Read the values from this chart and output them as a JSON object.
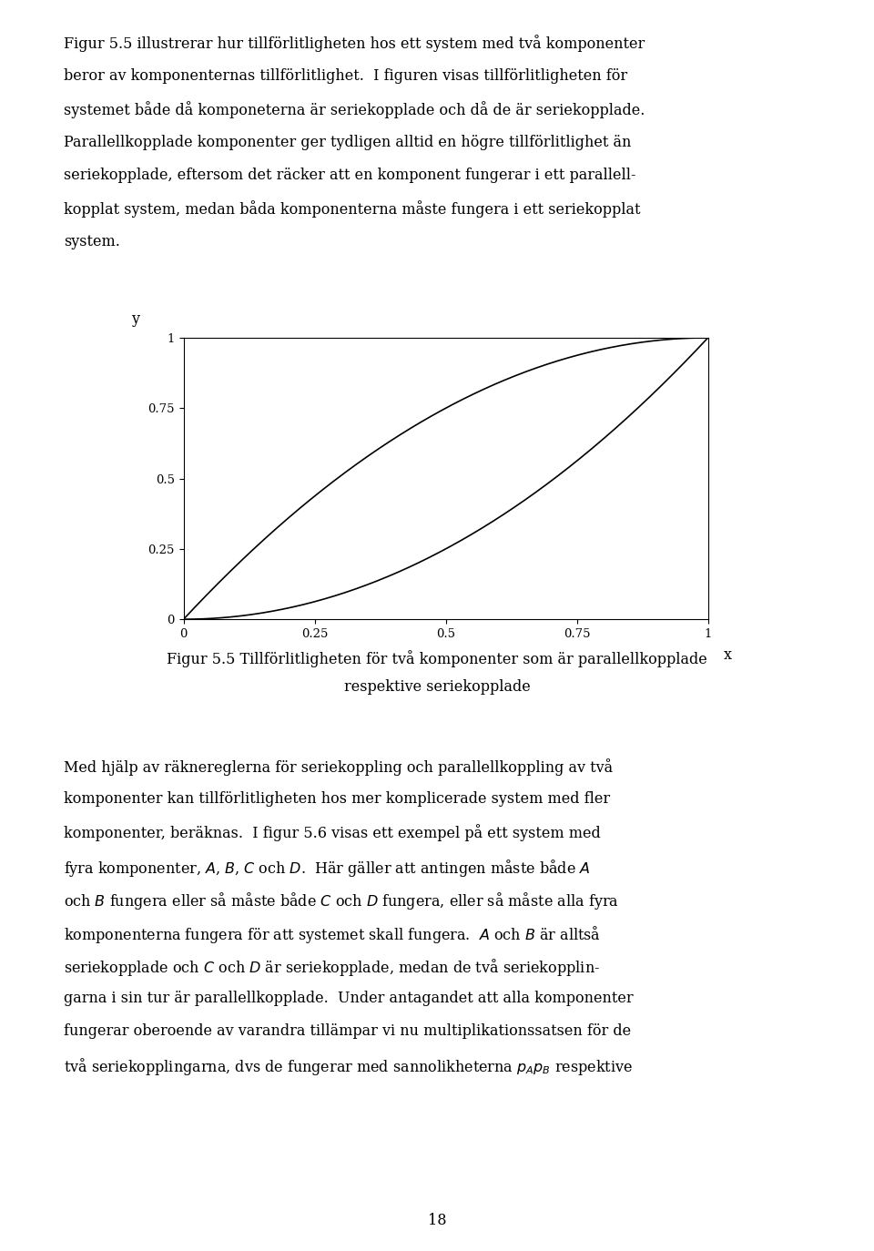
{
  "xlabel": "x",
  "ylabel": "y",
  "xticks": [
    0,
    0.25,
    0.5,
    0.75,
    1
  ],
  "yticks": [
    0,
    0.25,
    0.5,
    0.75,
    1
  ],
  "xtick_labels": [
    "0",
    "0.25",
    "0.5",
    "0.75",
    "1"
  ],
  "ytick_labels": [
    "0",
    "0.25",
    "0.5",
    "0.75",
    "1"
  ],
  "xlim": [
    0,
    1
  ],
  "ylim": [
    0,
    1
  ],
  "line_color": "#000000",
  "line_width": 1.2,
  "bg_color": "#ffffff",
  "tick_fontsize": 9.5,
  "body_fontsize": 11.5,
  "caption_fontsize": 11.5,
  "fig_width": 9.6,
  "fig_height": 13.74,
  "body_lines": [
    "Figur 5.5 illustrerar hur tillförlitligheten hos ett system med två komponenter",
    "beror av komponenternas tillförlitlighet.  I figuren visas tillförlitligheten för",
    "systemet både då komponeterna är seriekopplade och då de är seriekopplade.",
    "Parallellkopplade komponenter ger tydligen alltid en högre tillförlitlighet än",
    "seriekopplade, eftersom det räcker att en komponent fungerar i ett parallell-",
    "kopplat system, medan båda komponenterna måste fungera i ett seriekopplat",
    "system."
  ],
  "caption_lines": [
    "Figur 5.5 Tillförlitligheten för två komponenter som är parallellkopplade",
    "respektive seriekopplade"
  ],
  "bottom_lines": [
    "Med hjälp av räknereglerna för seriekoppling och parallellkoppling av två",
    "komponenter kan tillförlitligheten hos mer komplicerade system med fler",
    "komponenter, beräknas.  I figur 5.6 visas ett exempel på ett system med",
    "fyra komponenter, $A$, $B$, $C$ och $D$.  Här gäller att antingen måste både $A$",
    "och $B$ fungera eller så måste både $C$ och $D$ fungera, eller så måste alla fyra",
    "komponenterna fungera för att systemet skall fungera.  $A$ och $B$ är alltså",
    "seriekopplade och $C$ och $D$ är seriekopplade, medan de två seriekopplin-",
    "garna i sin tur är parallellkopplade.  Under antagandet att alla komponenter",
    "fungerar oberoende av varandra tillämpar vi nu multiplikationssatsen för de",
    "två seriekopplingarna, dvs de fungerar med sannolikheterna $p_Ap_B$ respektive"
  ],
  "page_number": "18"
}
